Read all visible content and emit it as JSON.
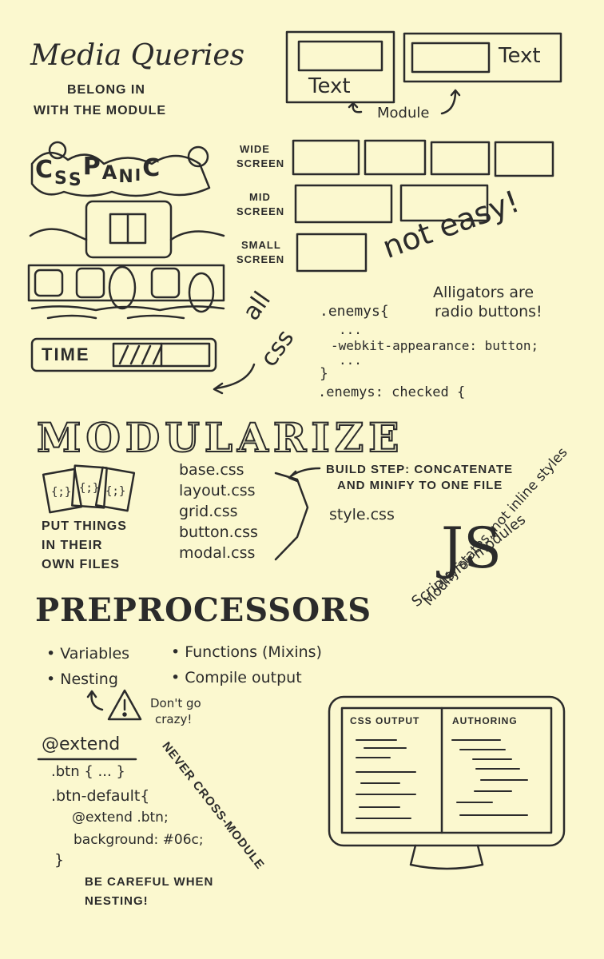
{
  "media_queries": {
    "title": "Media Queries",
    "subtitle_1": "BELONG IN",
    "subtitle_2": "WITH THE MODULE",
    "box_text_1": "Text",
    "box_text_2": "Text",
    "module_label": "Module"
  },
  "screens": {
    "wide_1": "WIDE",
    "wide_2": "SCREEN",
    "mid_1": "MID",
    "mid_2": "SCREEN",
    "small_1": "SMALL",
    "small_2": "SCREEN",
    "not_easy": "not easy!"
  },
  "game": {
    "logo_letters": [
      "C",
      "S",
      "S",
      "P",
      "A",
      "N",
      "I",
      "C"
    ],
    "time_label": "TIME",
    "progress": 0.5
  },
  "all_css": {
    "line_1": "all",
    "line_2": "css"
  },
  "alligators": {
    "line_1": "Alligators are",
    "line_2": "radio buttons!"
  },
  "code": {
    "line_1": ".enemys{",
    "line_2": "...",
    "line_3": "-webkit-appearance: button;",
    "line_4": "...",
    "line_5": "}",
    "line_6": ".enemys: checked {"
  },
  "modularize": {
    "title": "MODULARIZE",
    "put_1": "PUT THINGS",
    "put_2": "IN THEIR",
    "put_3": "OWN FILES",
    "files": [
      "base.css",
      "layout.css",
      "grid.css",
      "button.css",
      "modal.css"
    ],
    "build_1": "BUILD STEP: CONCATENATE",
    "build_2": "AND MINIFY TO ONE FILE",
    "output": "style.css"
  },
  "js": {
    "logo": "JS",
    "line_1": "Scripts for modules",
    "line_2": "Modify states, not inline styles"
  },
  "preprocessors": {
    "title": "PREPROCESSORS",
    "bullet_1": "Variables",
    "bullet_2": "Functions (Mixins)",
    "bullet_3": "Nesting",
    "bullet_4": "Compile output",
    "warning_1": "Don't go",
    "warning_2": "crazy!"
  },
  "extend": {
    "title": "@extend",
    "line_1": ".btn { ... }",
    "line_2": ".btn-default{",
    "line_3": "@extend .btn;",
    "line_4": "background: #06c;",
    "line_5": "}",
    "careful_1": "BE CAREFUL WHEN",
    "careful_2": "NESTING!",
    "never": "NEVER CROSS-MODULE"
  },
  "monitor": {
    "left_title": "CSS OUTPUT",
    "right_title": "AUTHORING"
  }
}
